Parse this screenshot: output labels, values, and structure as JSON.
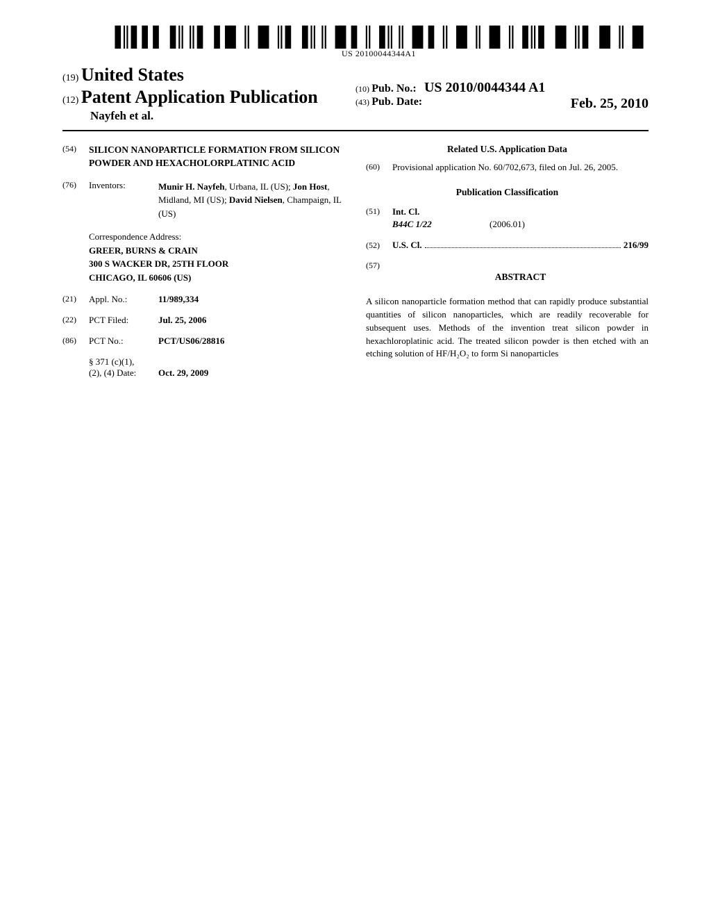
{
  "barcode_text": "US 20100044344A1",
  "header": {
    "code19": "(19)",
    "country": "United States",
    "code12": "(12)",
    "doc_type": "Patent Application Publication",
    "author_line": "Nayfeh et al.",
    "code10": "(10)",
    "pubno_label": "Pub. No.:",
    "pubno_value": "US 2010/0044344 A1",
    "code43": "(43)",
    "pubdate_label": "Pub. Date:",
    "pubdate_value": "Feb. 25, 2010"
  },
  "left": {
    "title_code": "(54)",
    "title": "SILICON NANOPARTICLE FORMATION FROM SILICON POWDER AND HEXACHOLORPLATINIC ACID",
    "inventors_code": "(76)",
    "inventors_label": "Inventors:",
    "inventors_html": "<b>Munir H. Nayfeh</b>, Urbana, IL (US); <b>Jon Host</b>, Midland, MI (US); <b>David Nielsen</b>, Champaign, IL (US)",
    "corr_label": "Correspondence Address:",
    "corr_line1": "GREER, BURNS & CRAIN",
    "corr_line2": "300 S WACKER DR, 25TH FLOOR",
    "corr_line3": "CHICAGO, IL 60606 (US)",
    "applno_code": "(21)",
    "applno_label": "Appl. No.:",
    "applno_value": "11/989,334",
    "pctfiled_code": "(22)",
    "pctfiled_label": "PCT Filed:",
    "pctfiled_value": "Jul. 25, 2006",
    "pctno_code": "(86)",
    "pctno_label": "PCT No.:",
    "pctno_value": "PCT/US06/28816",
    "s371_label": "§ 371 (c)(1),\n(2), (4) Date:",
    "s371_value": "Oct. 29, 2009"
  },
  "right": {
    "related_heading": "Related U.S. Application Data",
    "provisional_code": "(60)",
    "provisional_text": "Provisional application No. 60/702,673, filed on Jul. 26, 2005.",
    "pubclass_heading": "Publication Classification",
    "intcl_code": "(51)",
    "intcl_label": "Int. Cl.",
    "intcl_value": "B44C 1/22",
    "intcl_year": "(2006.01)",
    "uscl_code": "(52)",
    "uscl_label": "U.S. Cl.",
    "uscl_value": "216/99",
    "abstract_code": "(57)",
    "abstract_heading": "ABSTRACT",
    "abstract_text": "A silicon nanoparticle formation method that can rapidly produce substantial quantities of silicon nanoparticles, which are readily recoverable for subsequent uses. Methods of the invention treat silicon powder in hexachloroplatinic acid. The treated silicon powder is then etched with an etching solution of HF/H₂O₂ to form Si nanoparticles"
  }
}
